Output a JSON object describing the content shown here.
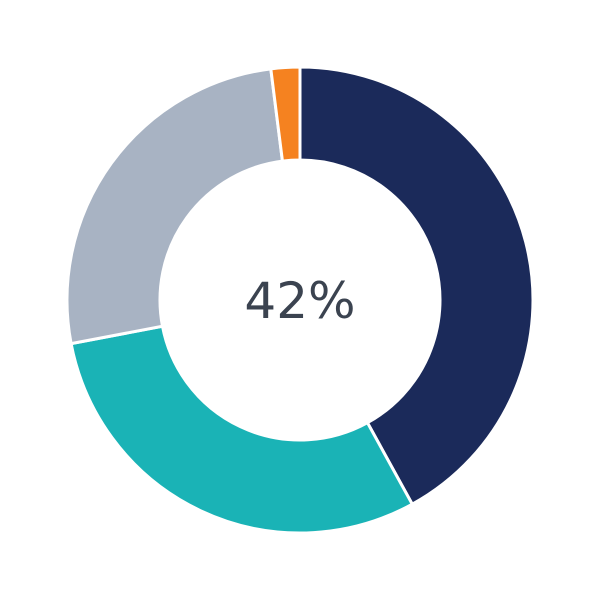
{
  "chart_data": {
    "type": "pie",
    "donut": true,
    "center_label": "42%",
    "slices": [
      {
        "value": 42,
        "color": "#1b2a5a"
      },
      {
        "value": 30,
        "color": "#1ab3b6"
      },
      {
        "value": 26,
        "color": "#a8b3c3"
      },
      {
        "value": 2,
        "color": "#f58220"
      }
    ],
    "start_angle": "top",
    "direction": "clockwise"
  }
}
